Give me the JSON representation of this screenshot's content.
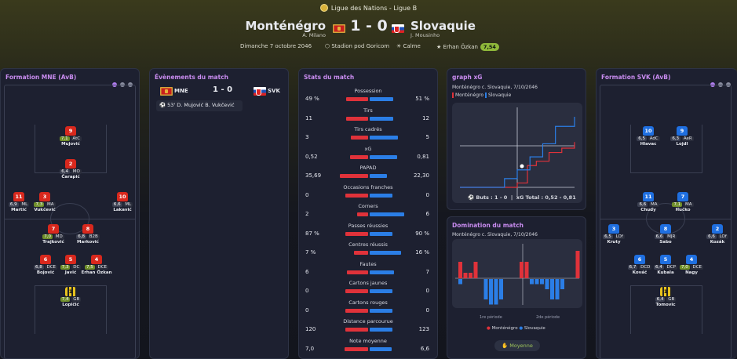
{
  "header": {
    "competition": "Ligue des Nations - Ligue B",
    "home_team": "Monténégro",
    "home_coach": "A. Milano",
    "away_team": "Slovaquie",
    "away_coach": "J. Mousinho",
    "score": "1 - 0",
    "date": "Dimanche 7 octobre 2046",
    "stadium": "Stadion pod Goricom",
    "weather": "Calme",
    "referee": "Erhan Özkan",
    "referee_rating": "7,54"
  },
  "home_formation": {
    "title": "Formation MNE (AvB)",
    "players": [
      {
        "num": "9",
        "rating": "7,1",
        "pos": "AtC",
        "name": "Mujović"
      },
      {
        "num": "2",
        "rating": "6,4",
        "pos": "MO",
        "name": "Čarapić"
      },
      {
        "num": "11",
        "rating": "6,9",
        "pos": "ML",
        "name": "Martić"
      },
      {
        "num": "3",
        "rating": "7,3",
        "pos": "MA",
        "name": "Vukčević"
      },
      {
        "num": "10",
        "rating": "6,6",
        "pos": "ML",
        "name": "Lakavić"
      },
      {
        "num": "7",
        "rating": "7,0",
        "pos": "MD",
        "name": "Trajković"
      },
      {
        "num": "8",
        "rating": "6,8",
        "pos": "B2B",
        "name": "Marković"
      },
      {
        "num": "6",
        "rating": "6,8",
        "pos": "DCE",
        "name": "Bojović"
      },
      {
        "num": "5",
        "rating": "7,3",
        "pos": "DC",
        "name": "Javić"
      },
      {
        "num": "4",
        "rating": "7,5",
        "pos": "DCE",
        "name": "Erhan Özkan"
      },
      {
        "num": "1",
        "rating": "7,4",
        "pos": "GB",
        "name": "Lopičić"
      }
    ]
  },
  "events": {
    "title": "Évènements du match",
    "home": "MNE",
    "away": "SVK",
    "score": "1 - 0",
    "goal": "53' D. Mujović B. Vukčević"
  },
  "stats": {
    "title": "Stats du match",
    "rows": [
      {
        "label": "Possession",
        "home": "49 %",
        "away": "51 %",
        "h": 49,
        "a": 51
      },
      {
        "label": "Tirs",
        "home": "11",
        "away": "12",
        "h": 11,
        "a": 12
      },
      {
        "label": "Tirs cadrés",
        "home": "3",
        "away": "5",
        "h": 3,
        "a": 5
      },
      {
        "label": "xG",
        "home": "0,52",
        "away": "0,81",
        "h": 0.52,
        "a": 0.81
      },
      {
        "label": "PAPAD",
        "home": "35,69",
        "away": "22,30",
        "h": 35.69,
        "a": 22.3
      },
      {
        "label": "Occasions franches",
        "home": "0",
        "away": "0",
        "h": 0,
        "a": 0
      },
      {
        "label": "Corners",
        "home": "2",
        "away": "6",
        "h": 2,
        "a": 6
      },
      {
        "label": "Passes réussies",
        "home": "87 %",
        "away": "90 %",
        "h": 87,
        "a": 90
      },
      {
        "label": "Centres réussis",
        "home": "7 %",
        "away": "16 %",
        "h": 7,
        "a": 16
      },
      {
        "label": "Fautes",
        "home": "6",
        "away": "7",
        "h": 6,
        "a": 7
      },
      {
        "label": "Cartons jaunes",
        "home": "0",
        "away": "0",
        "h": 0,
        "a": 0
      },
      {
        "label": "Cartons rouges",
        "home": "0",
        "away": "0",
        "h": 0,
        "a": 0
      },
      {
        "label": "Distance parcourue",
        "home": "120",
        "away": "123",
        "h": 120,
        "a": 123
      },
      {
        "label": "Note moyenne",
        "home": "7,0",
        "away": "6,6",
        "h": 7.0,
        "a": 6.6
      }
    ]
  },
  "xg_graph": {
    "title": "graph xG",
    "subtitle": "Monténégro c. Slovaquie, 7/10/2046",
    "legend_home": "Monténégro",
    "legend_away": "Slovaquie",
    "buts": "Buts : 1 - 0",
    "xg_total": "xG Total : 0,52 - 0,81"
  },
  "domination": {
    "title": "Domination du match",
    "subtitle": "Monténégro c. Slovaquie, 7/10/2046",
    "half1": "1re période",
    "half2": "2de période",
    "legend_home": "Monténégro",
    "legend_away": "Slovaquie",
    "button": "Moyenne"
  },
  "away_formation": {
    "title": "Formation SVK (AvB)",
    "players": [
      {
        "num": "10",
        "rating": "6,5",
        "pos": "AdC",
        "name": "Hlavac"
      },
      {
        "num": "9",
        "rating": "6,3",
        "pos": "AeR",
        "name": "Lojdl"
      },
      {
        "num": "11",
        "rating": "6,6",
        "pos": "MA",
        "name": "Chudy"
      },
      {
        "num": "7",
        "rating": "7,1",
        "pos": "MA",
        "name": "Hučko"
      },
      {
        "num": "3",
        "rating": "6,5",
        "pos": "LOf",
        "name": "Kruty"
      },
      {
        "num": "8",
        "rating": "6,6",
        "pos": "MJR",
        "name": "Sabo"
      },
      {
        "num": "2",
        "rating": "6,6",
        "pos": "LOf",
        "name": "Kozák"
      },
      {
        "num": "6",
        "rating": "6,7",
        "pos": "DCD",
        "name": "Kováč"
      },
      {
        "num": "5",
        "rating": "6,4",
        "pos": "DCP",
        "name": "Kubala"
      },
      {
        "num": "4",
        "rating": "7,0",
        "pos": "DCE",
        "name": "Nagy"
      },
      {
        "num": "1",
        "rating": "6,4",
        "pos": "GB",
        "name": "Tomovic"
      }
    ]
  },
  "chart_data": [
    {
      "type": "line",
      "title": "graph xG",
      "series": [
        {
          "name": "Monténégro",
          "x": [
            0,
            45,
            53,
            60,
            70,
            80,
            90
          ],
          "y": [
            0,
            0.05,
            0.25,
            0.3,
            0.4,
            0.45,
            0.52
          ]
        },
        {
          "name": "Slovaquie",
          "x": [
            0,
            35,
            45,
            55,
            65,
            75,
            90
          ],
          "y": [
            0,
            0.1,
            0.2,
            0.35,
            0.5,
            0.7,
            0.81
          ]
        }
      ]
    },
    {
      "type": "bar",
      "title": "Domination du match",
      "series": [
        {
          "name": "Monténégro",
          "values": [
            3,
            1,
            1,
            3,
            0,
            0,
            0,
            0,
            0,
            0,
            0,
            0,
            3,
            3,
            0,
            0,
            0,
            0,
            0,
            0,
            0,
            0,
            0,
            5
          ]
        },
        {
          "name": "Slovaquie",
          "values": [
            1,
            0,
            0,
            0,
            0,
            4,
            5,
            5,
            4,
            0,
            0,
            0,
            0,
            0,
            1,
            1,
            1,
            2,
            4,
            4,
            2,
            0,
            0,
            0
          ]
        }
      ]
    }
  ]
}
